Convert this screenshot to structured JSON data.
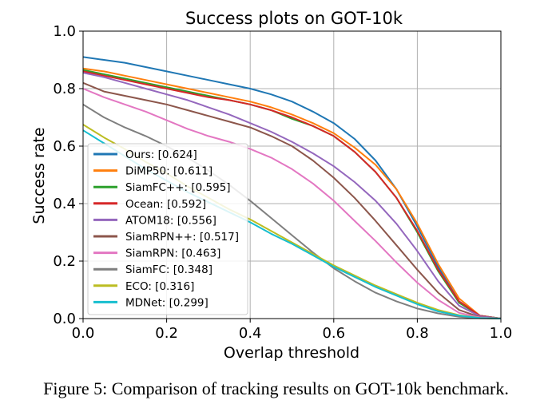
{
  "chart_data": {
    "type": "line",
    "title": "Success plots on GOT-10k",
    "xlabel": "Overlap threshold",
    "ylabel": "Success rate",
    "xlim": [
      0,
      1
    ],
    "ylim": [
      0,
      1
    ],
    "xticks": [
      "0.0",
      "0.2",
      "0.4",
      "0.6",
      "0.8",
      "1.0"
    ],
    "yticks": [
      "0.0",
      "0.2",
      "0.4",
      "0.6",
      "0.8",
      "1.0"
    ],
    "grid": true,
    "legend_position": "lower-left",
    "x": [
      0,
      0.05,
      0.1,
      0.15,
      0.2,
      0.25,
      0.3,
      0.35,
      0.4,
      0.45,
      0.5,
      0.55,
      0.6,
      0.65,
      0.7,
      0.75,
      0.8,
      0.85,
      0.9,
      0.95,
      1.0
    ],
    "series": [
      {
        "name": "Ours: [0.624]",
        "color": "#1f77b4",
        "values": [
          0.91,
          0.9,
          0.89,
          0.875,
          0.86,
          0.845,
          0.83,
          0.815,
          0.8,
          0.78,
          0.755,
          0.72,
          0.68,
          0.625,
          0.55,
          0.45,
          0.32,
          0.18,
          0.06,
          0.01,
          0.0
        ]
      },
      {
        "name": "DiMP50: [0.611]",
        "color": "#ff7f0e",
        "values": [
          0.87,
          0.86,
          0.845,
          0.83,
          0.815,
          0.8,
          0.785,
          0.77,
          0.755,
          0.735,
          0.71,
          0.68,
          0.645,
          0.595,
          0.535,
          0.45,
          0.33,
          0.19,
          0.07,
          0.01,
          0.0
        ]
      },
      {
        "name": "SiamFC++: [0.595]",
        "color": "#2ca02c",
        "values": [
          0.865,
          0.85,
          0.835,
          0.82,
          0.805,
          0.79,
          0.775,
          0.76,
          0.745,
          0.725,
          0.695,
          0.67,
          0.635,
          0.58,
          0.51,
          0.42,
          0.3,
          0.165,
          0.055,
          0.01,
          0.0
        ]
      },
      {
        "name": "Ocean: [0.592]",
        "color": "#d62728",
        "values": [
          0.86,
          0.845,
          0.83,
          0.815,
          0.8,
          0.785,
          0.77,
          0.76,
          0.745,
          0.725,
          0.7,
          0.67,
          0.635,
          0.58,
          0.51,
          0.42,
          0.305,
          0.17,
          0.06,
          0.01,
          0.0
        ]
      },
      {
        "name": "ATOM18: [0.556]",
        "color": "#9467bd",
        "values": [
          0.855,
          0.84,
          0.82,
          0.8,
          0.78,
          0.76,
          0.735,
          0.71,
          0.68,
          0.65,
          0.615,
          0.575,
          0.53,
          0.475,
          0.41,
          0.33,
          0.235,
          0.13,
          0.045,
          0.008,
          0.0
        ]
      },
      {
        "name": "SiamRPN++: [0.517]",
        "color": "#8c564b",
        "values": [
          0.82,
          0.79,
          0.775,
          0.76,
          0.745,
          0.725,
          0.705,
          0.685,
          0.665,
          0.635,
          0.6,
          0.55,
          0.49,
          0.42,
          0.34,
          0.255,
          0.17,
          0.09,
          0.03,
          0.005,
          0.0
        ]
      },
      {
        "name": "SiamRPN: [0.463]",
        "color": "#e377c2",
        "values": [
          0.8,
          0.77,
          0.745,
          0.72,
          0.69,
          0.66,
          0.635,
          0.615,
          0.59,
          0.56,
          0.52,
          0.47,
          0.41,
          0.34,
          0.27,
          0.195,
          0.125,
          0.065,
          0.02,
          0.004,
          0.0
        ]
      },
      {
        "name": "SiamFC: [0.348]",
        "color": "#7f7f7f",
        "values": [
          0.745,
          0.7,
          0.665,
          0.635,
          0.6,
          0.56,
          0.515,
          0.465,
          0.41,
          0.35,
          0.29,
          0.23,
          0.175,
          0.13,
          0.09,
          0.06,
          0.035,
          0.018,
          0.006,
          0.001,
          0.0
        ]
      },
      {
        "name": "ECO: [0.316]",
        "color": "#bcbd22",
        "values": [
          0.675,
          0.63,
          0.59,
          0.545,
          0.505,
          0.46,
          0.42,
          0.38,
          0.345,
          0.305,
          0.265,
          0.225,
          0.185,
          0.15,
          0.115,
          0.085,
          0.055,
          0.03,
          0.012,
          0.002,
          0.0
        ]
      },
      {
        "name": "MDNet: [0.299]",
        "color": "#17becf",
        "values": [
          0.655,
          0.61,
          0.565,
          0.52,
          0.48,
          0.44,
          0.405,
          0.37,
          0.335,
          0.295,
          0.26,
          0.22,
          0.18,
          0.145,
          0.11,
          0.08,
          0.05,
          0.025,
          0.01,
          0.002,
          0.0
        ]
      }
    ]
  },
  "caption": "Figure 5: Comparison of tracking results on GOT-10k benchmark."
}
